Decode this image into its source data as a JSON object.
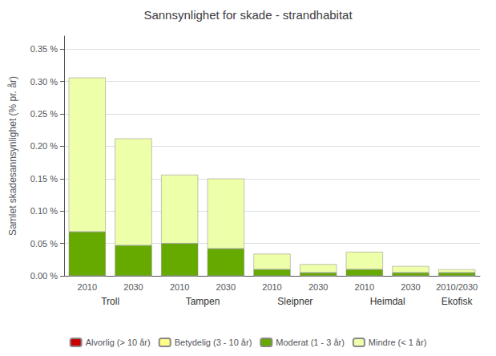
{
  "chart_data": {
    "type": "bar",
    "title": "Sannsynlighet for skade - strandhabitat",
    "ylabel": "Samlet skadesannsynlighet (% pr. år)",
    "categories": [
      "2010",
      "2030",
      "2010",
      "2030",
      "2010",
      "2030",
      "2010",
      "2030",
      "2010/2030"
    ],
    "group_labels": [
      "Troll",
      "Tampen",
      "Sleipner",
      "Heimdal",
      "Ekofisk"
    ],
    "group_sizes": [
      2,
      2,
      2,
      2,
      1
    ],
    "series": [
      {
        "name": "Alvorlig (> 10 år)",
        "color": "#cc0000",
        "values": [
          0.0,
          0.0,
          0.0,
          0.0,
          0.0,
          0.0,
          0.0,
          0.0,
          0.0
        ]
      },
      {
        "name": "Betydelig (3 - 10 år)",
        "color": "#ffff88",
        "values": [
          0.0,
          0.0,
          0.0,
          0.0,
          0.0,
          0.0,
          0.0,
          0.0,
          0.0
        ]
      },
      {
        "name": "Moderat (1 - 3 år)",
        "color": "#66aa00",
        "values": [
          0.068,
          0.047,
          0.05,
          0.042,
          0.01,
          0.005,
          0.01,
          0.005,
          0.005
        ]
      },
      {
        "name": "Mindre (< 1 år)",
        "color": "#eeffaa",
        "values": [
          0.238,
          0.165,
          0.106,
          0.108,
          0.024,
          0.013,
          0.027,
          0.01,
          0.005
        ]
      }
    ],
    "ylim": [
      0,
      0.37
    ],
    "yticks": [
      {
        "value": 0.0,
        "label": "0.00 %"
      },
      {
        "value": 0.05,
        "label": "0.05 %"
      },
      {
        "value": 0.1,
        "label": "0.10 %"
      },
      {
        "value": 0.15,
        "label": "0.15 %"
      },
      {
        "value": 0.2,
        "label": "0.20 %"
      },
      {
        "value": 0.25,
        "label": "0.25 %"
      },
      {
        "value": 0.3,
        "label": "0.30 %"
      },
      {
        "value": 0.35,
        "label": "0.35 %"
      }
    ],
    "grid": true,
    "stacked": true,
    "legend": "bottom"
  }
}
